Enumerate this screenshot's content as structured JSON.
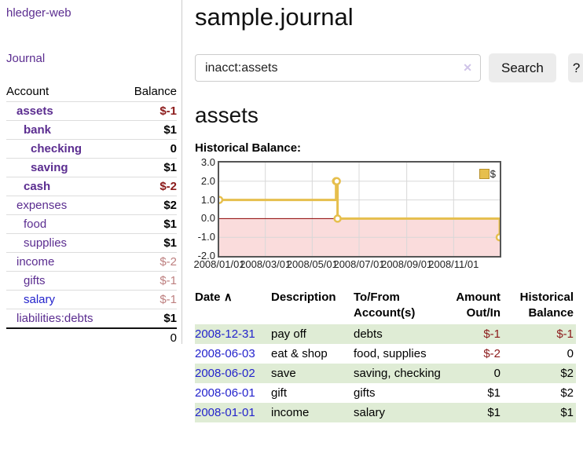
{
  "sidebar": {
    "brand": "hledger-web",
    "nav_journal": "Journal",
    "accounts_table": {
      "headers": {
        "account": "Account",
        "balance": "Balance"
      },
      "rows": [
        {
          "name": "assets",
          "indent": 1,
          "bold": true,
          "balance": "$-1",
          "balance_style": "neg-strong"
        },
        {
          "name": "bank",
          "indent": 2,
          "bold": true,
          "balance": "$1",
          "balance_style": "pos"
        },
        {
          "name": "checking",
          "indent": 3,
          "bold": true,
          "balance": "0",
          "balance_style": "pos"
        },
        {
          "name": "saving",
          "indent": 3,
          "bold": true,
          "balance": "$1",
          "balance_style": "pos"
        },
        {
          "name": "cash",
          "indent": 2,
          "bold": true,
          "balance": "$-2",
          "balance_style": "neg-strong"
        },
        {
          "name": "expenses",
          "indent": 1,
          "bold": false,
          "balance": "$2",
          "balance_style": "pos"
        },
        {
          "name": "food",
          "indent": 2,
          "bold": false,
          "balance": "$1",
          "balance_style": "pos"
        },
        {
          "name": "supplies",
          "indent": 2,
          "bold": false,
          "balance": "$1",
          "balance_style": "pos"
        },
        {
          "name": "income",
          "indent": 1,
          "bold": false,
          "balance": "$-2",
          "balance_style": "neg-soft"
        },
        {
          "name": "gifts",
          "indent": 2,
          "bold": false,
          "balance": "$-1",
          "balance_style": "neg-soft"
        },
        {
          "name": "salary",
          "indent": 2,
          "bold": false,
          "link_style": "unvisited",
          "balance": "$-1",
          "balance_style": "neg-soft"
        },
        {
          "name": "liabilities:debts",
          "indent": 1,
          "bold": false,
          "balance": "$1",
          "balance_style": "pos"
        }
      ],
      "total": "0"
    }
  },
  "header": {
    "title": "sample.journal"
  },
  "search": {
    "value": "inacct:assets",
    "clear_icon": "✕",
    "button_label": "Search",
    "help_label": "?"
  },
  "account_page": {
    "title": "assets",
    "chart_label": "Historical Balance:"
  },
  "chart_data": {
    "type": "line",
    "style": "step",
    "title": "Historical Balance",
    "series": [
      {
        "name": "$",
        "points": [
          [
            "2008-01-01",
            1
          ],
          [
            "2008-06-01",
            2
          ],
          [
            "2008-06-02",
            2
          ],
          [
            "2008-06-03",
            0
          ],
          [
            "2008-12-31",
            -1
          ]
        ]
      }
    ],
    "ylim": [
      -2,
      3
    ],
    "ytick_labels": [
      "3.0",
      "2.0",
      "1.0",
      "0.0",
      "-1.0",
      "-2.0"
    ],
    "xtick_labels": [
      "2008/01/01",
      "2008/03/01",
      "2008/05/01",
      "2008/07/01",
      "2008/09/01",
      "2008/11/01"
    ],
    "xrange": [
      "2008-01-01",
      "2008-12-31"
    ],
    "legend": "$",
    "legend_position": "top-right",
    "grid": true,
    "colors": {
      "line": "#e6bf4d",
      "marker_fill": "#ffffff",
      "negative_region": "#fadcdc",
      "zero_line": "#8b0000",
      "grid_line": "#d8d8d8"
    }
  },
  "register": {
    "headers": {
      "date": "Date",
      "sort_icon": "∧",
      "description": "Description",
      "accounts": "To/From Account(s)",
      "amount": "Amount Out/In",
      "balance": "Historical Balance"
    },
    "rows": [
      {
        "date": "2008-12-31",
        "description": "pay off",
        "accounts": "debts",
        "amount": "$-1",
        "amount_neg": true,
        "balance": "$-1",
        "balance_neg": true
      },
      {
        "date": "2008-06-03",
        "description": "eat & shop",
        "accounts": "food, supplies",
        "amount": "$-2",
        "amount_neg": true,
        "balance": "0",
        "balance_neg": false
      },
      {
        "date": "2008-06-02",
        "description": "save",
        "accounts": "saving, checking",
        "amount": "0",
        "amount_neg": false,
        "balance": "$2",
        "balance_neg": false
      },
      {
        "date": "2008-06-01",
        "description": "gift",
        "accounts": "gifts",
        "amount": "$1",
        "amount_neg": false,
        "balance": "$2",
        "balance_neg": false
      },
      {
        "date": "2008-01-01",
        "description": "income",
        "accounts": "salary",
        "amount": "$1",
        "amount_neg": false,
        "balance": "$1",
        "balance_neg": false
      }
    ]
  }
}
